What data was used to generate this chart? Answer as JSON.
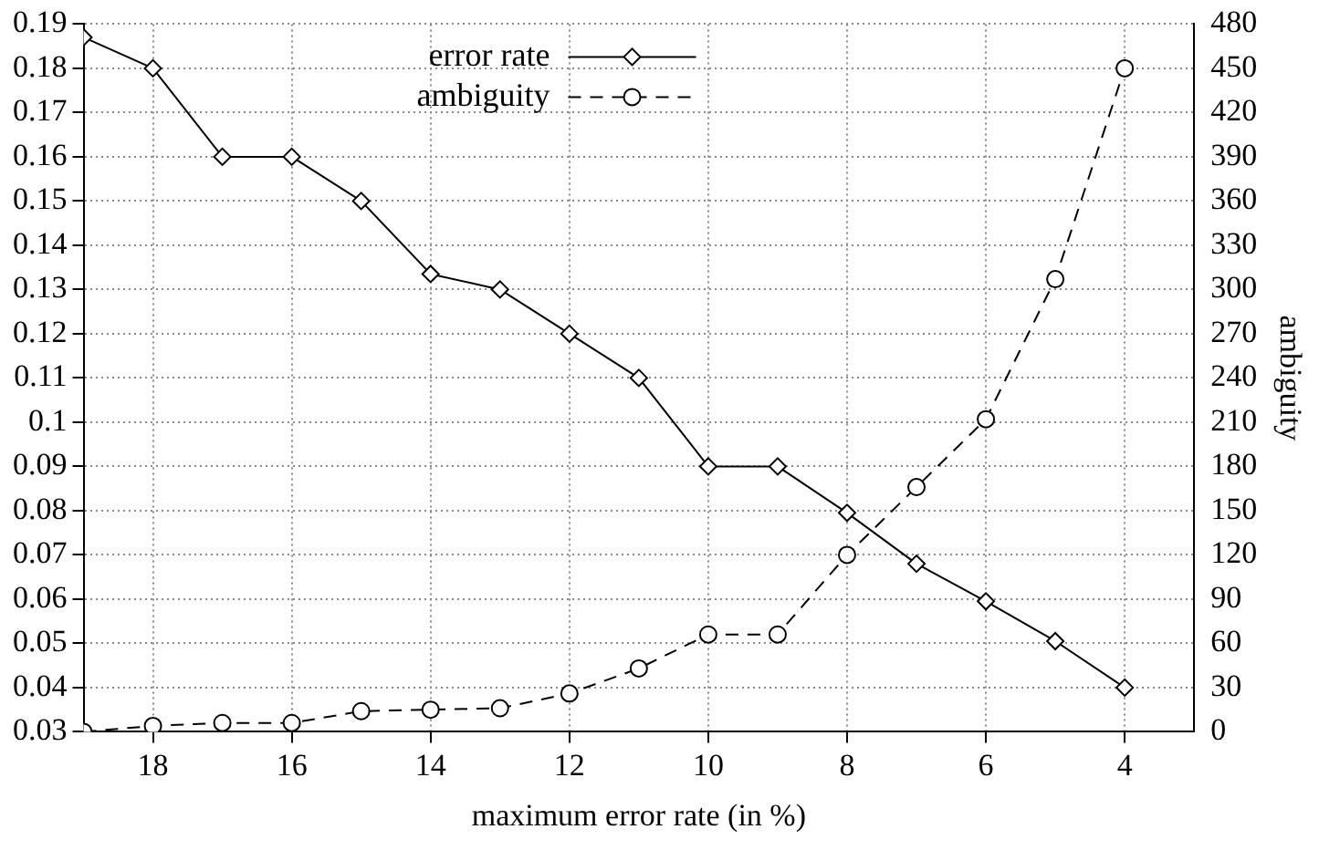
{
  "chart_data": {
    "type": "line",
    "xlabel": "maximum error rate (in %)",
    "y2label": "ambiguity",
    "x": [
      19,
      18,
      17,
      16,
      15,
      14,
      13,
      12,
      11,
      10,
      9,
      8,
      7,
      6,
      5,
      4
    ],
    "xlim": [
      19,
      3
    ],
    "xticks": [
      18,
      16,
      14,
      12,
      10,
      8,
      6,
      4
    ],
    "ylim": [
      0.03,
      0.19
    ],
    "yticks": [
      0.03,
      0.04,
      0.05,
      0.06,
      0.07,
      0.08,
      0.09,
      0.1,
      0.11,
      0.12,
      0.13,
      0.14,
      0.15,
      0.16,
      0.17,
      0.18,
      0.19
    ],
    "y2lim": [
      0,
      480
    ],
    "y2ticks": [
      0,
      30,
      60,
      90,
      120,
      150,
      180,
      210,
      240,
      270,
      300,
      330,
      360,
      390,
      420,
      450,
      480
    ],
    "grid": true,
    "legend": "top",
    "series": [
      {
        "name": "error rate",
        "color": "#000000",
        "marker": "diamond",
        "line_style": "solid",
        "values": [
          0.187,
          0.18,
          0.16,
          0.16,
          0.15,
          0.1335,
          0.13,
          0.12,
          0.11,
          0.09,
          0.09,
          0.0795,
          0.068,
          0.0595,
          0.0505,
          0.04
        ]
      },
      {
        "name": "ambiguity",
        "color": "#000000",
        "marker": "circle",
        "line_style": "dashed",
        "axis": "y2",
        "values": [
          0,
          4,
          6,
          6,
          14,
          15,
          16,
          26,
          43,
          66,
          66,
          120,
          166,
          212,
          307,
          450
        ]
      }
    ]
  }
}
